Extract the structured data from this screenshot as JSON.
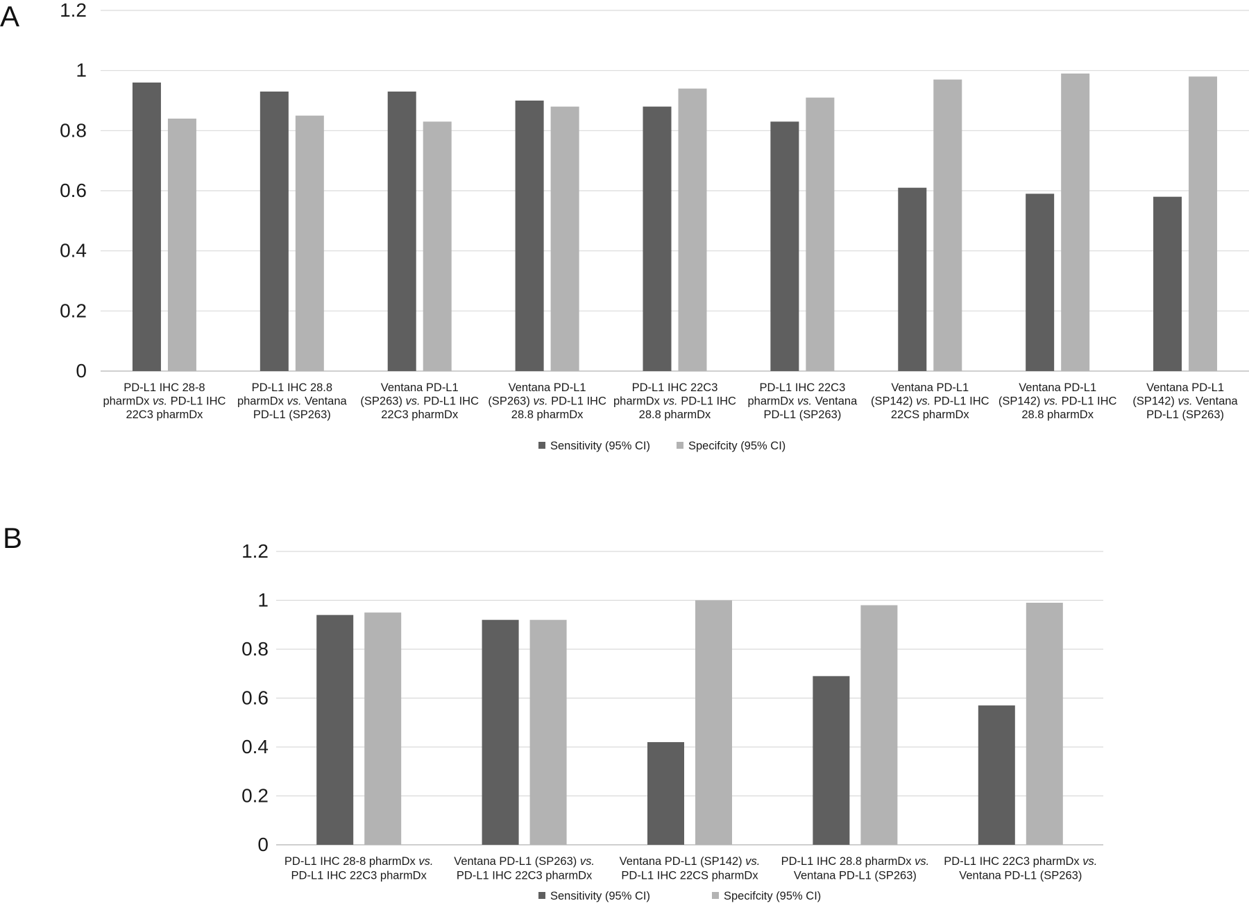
{
  "chart_data": [
    {
      "panel": "A",
      "type": "bar",
      "categories": [
        [
          "PD-L1 IHC 28-8",
          "pharmDx |vs.| PD-L1 IHC",
          "22C3 pharmDx"
        ],
        [
          "PD-L1 IHC 28.8",
          "pharmDx |vs.| Ventana",
          "PD-L1 (SP263)"
        ],
        [
          "Ventana PD-L1",
          "(SP263) |vs.| PD-L1 IHC",
          "22C3 pharmDx"
        ],
        [
          "Ventana PD-L1",
          "(SP263) |vs.| PD-L1 IHC",
          "28.8 pharmDx"
        ],
        [
          "PD-L1 IHC 22C3",
          "pharmDx |vs.| PD-L1 IHC",
          "28.8 pharmDx"
        ],
        [
          "PD-L1 IHC 22C3",
          "pharmDx |vs.| Ventana",
          "PD-L1 (SP263)"
        ],
        [
          "Ventana PD-L1",
          "(SP142) |vs.| PD-L1 IHC",
          "22CS pharmDx"
        ],
        [
          "Ventana PD-L1",
          "(SP142) |vs.| PD-L1 IHC",
          "28.8 pharmDx"
        ],
        [
          "Ventana PD-L1",
          "(SP142) |vs.| Ventana",
          "PD-L1 (SP263)"
        ]
      ],
      "series": [
        {
          "name": "Sensitivity (95% CI)",
          "color": "#5f5f5f",
          "values": [
            0.96,
            0.93,
            0.93,
            0.9,
            0.88,
            0.83,
            0.61,
            0.59,
            0.58
          ]
        },
        {
          "name": "Specifcity (95% CI)",
          "color": "#b3b3b3",
          "values": [
            0.84,
            0.85,
            0.83,
            0.88,
            0.94,
            0.91,
            0.97,
            0.99,
            0.98
          ]
        }
      ],
      "yticks": [
        "0",
        "0.2",
        "0.4",
        "0.6",
        "0.8",
        "1",
        "1.2"
      ],
      "ylim": [
        0,
        1.2
      ],
      "grid": true,
      "legend": "bottom-center"
    },
    {
      "panel": "B",
      "type": "bar",
      "categories": [
        [
          "PD-L1 IHC 28-8 pharmDx |vs.|",
          "PD-L1 IHC 22C3 pharmDx"
        ],
        [
          "Ventana PD-L1 (SP263) |vs.|",
          "PD-L1 IHC 22C3 pharmDx"
        ],
        [
          "Ventana PD-L1 (SP142) |vs.|",
          "PD-L1 IHC 22CS pharmDx"
        ],
        [
          "PD-L1 IHC 28.8 pharmDx |vs.|",
          "Ventana PD-L1 (SP263)"
        ],
        [
          "PD-L1 IHC 22C3 pharmDx |vs.|",
          "Ventana PD-L1 (SP263)"
        ]
      ],
      "series": [
        {
          "name": "Sensitivity (95% CI)",
          "color": "#5f5f5f",
          "values": [
            0.94,
            0.92,
            0.42,
            0.69,
            0.57
          ]
        },
        {
          "name": "Specifcity (95% CI)",
          "color": "#b3b3b3",
          "values": [
            0.95,
            0.92,
            1.0,
            0.98,
            0.99
          ]
        }
      ],
      "yticks": [
        "0",
        "0.2",
        "0.4",
        "0.6",
        "0.8",
        "1",
        "1.2"
      ],
      "ylim": [
        0,
        1.2
      ],
      "grid": true,
      "legend": "bottom-center"
    }
  ]
}
